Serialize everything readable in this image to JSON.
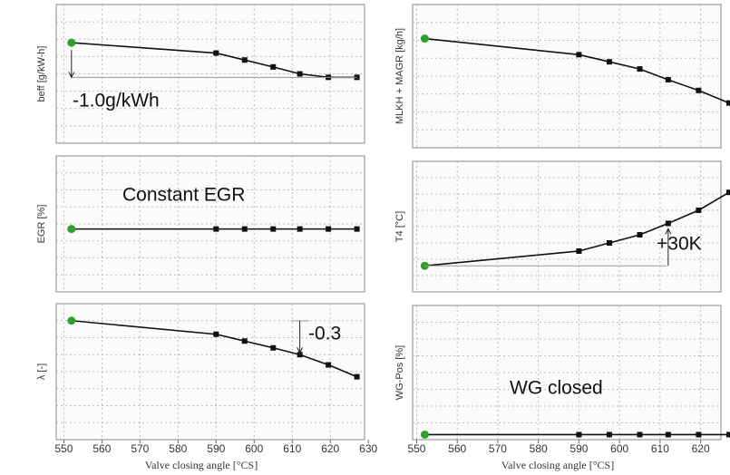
{
  "chart_data": [
    {
      "type": "line",
      "ylabel": "beff [g/kW-h]",
      "annotation": "-1.0g/kWh",
      "x": [
        552,
        590,
        597.5,
        605,
        612,
        619.5,
        627
      ],
      "values": [
        5.8,
        5.2,
        4.8,
        4.4,
        4.0,
        3.8,
        3.8
      ],
      "xlim": [
        548,
        629
      ],
      "ylim": [
        0,
        8
      ],
      "color": "#111111",
      "start_color": "#2e9e2e",
      "grid": true
    },
    {
      "type": "line",
      "ylabel": "EGR [%]",
      "annotation": "Constant EGR",
      "x": [
        552,
        590,
        597.5,
        605,
        612,
        619.5,
        627
      ],
      "values": [
        3.7,
        3.7,
        3.7,
        3.7,
        3.7,
        3.7,
        3.7
      ],
      "xlim": [
        548,
        629
      ],
      "ylim": [
        0,
        8
      ],
      "color": "#111111",
      "start_color": "#2e9e2e",
      "grid": true
    },
    {
      "type": "line",
      "ylabel": "λ [-]",
      "annotation": "-0.3",
      "xlabel": "Valve closing angle [°CS]",
      "x": [
        552,
        590,
        597.5,
        605,
        612,
        619.5,
        627
      ],
      "values": [
        7.0,
        6.2,
        5.8,
        5.4,
        5.0,
        4.4,
        3.7
      ],
      "xlim": [
        548,
        629
      ],
      "ylim": [
        0,
        8
      ],
      "xticks": [
        550,
        560,
        570,
        580,
        590,
        600,
        610,
        620,
        630
      ],
      "color": "#111111",
      "start_color": "#2e9e2e",
      "grid": true
    },
    {
      "type": "line",
      "ylabel": "MLKH + MAGR [kg/h]",
      "x": [
        552,
        590,
        597.5,
        605,
        612,
        619.5,
        627
      ],
      "values": [
        6.1,
        5.2,
        4.8,
        4.4,
        3.8,
        3.2,
        2.5
      ],
      "xlim": [
        549,
        625
      ],
      "ylim": [
        0,
        8
      ],
      "color": "#111111",
      "start_color": "#2e9e2e",
      "grid": true
    },
    {
      "type": "line",
      "ylabel": "T4 [°C]",
      "annotation": "+30K",
      "x": [
        552,
        590,
        597.5,
        605,
        612,
        619.5,
        627
      ],
      "values": [
        1.6,
        2.5,
        3.0,
        3.5,
        4.2,
        5.0,
        6.1
      ],
      "xlim": [
        549,
        625
      ],
      "ylim": [
        0,
        8
      ],
      "color": "#111111",
      "start_color": "#2e9e2e",
      "grid": true
    },
    {
      "type": "line",
      "ylabel": "WG-Pos [%]",
      "annotation": "WG closed",
      "xlabel": "Valve closing angle [°CS]",
      "x": [
        552,
        590,
        597.5,
        605,
        612,
        619.5,
        627
      ],
      "values": [
        0.3,
        0.3,
        0.3,
        0.3,
        0.3,
        0.3,
        0.3
      ],
      "xlim": [
        549,
        625
      ],
      "ylim": [
        0,
        8
      ],
      "xticks": [
        550,
        560,
        570,
        580,
        590,
        600,
        610,
        620
      ],
      "color": "#111111",
      "start_color": "#2e9e2e",
      "grid": true
    }
  ]
}
